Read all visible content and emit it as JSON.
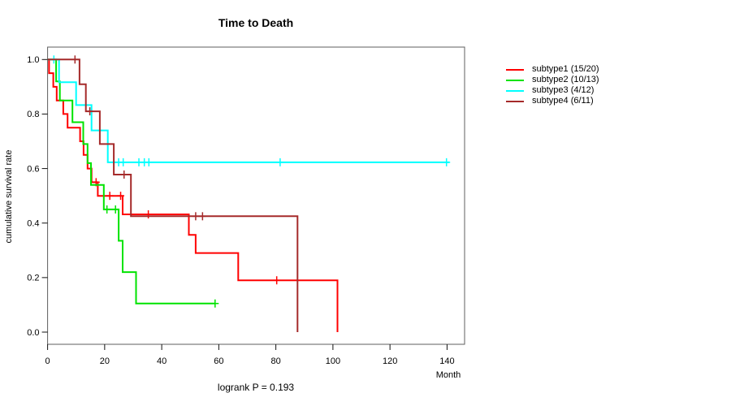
{
  "chart_data": {
    "type": "line",
    "variant": "kaplan-meier-step",
    "title": "Time to Death",
    "xlabel": "Month",
    "ylabel": "cumulative survival rate",
    "annotation": "logrank P = 0.193",
    "xlim": [
      0,
      146
    ],
    "ylim": [
      0,
      1
    ],
    "grid": false,
    "legend_position": "right-outside",
    "x_tick_values": [
      0,
      20,
      40,
      60,
      80,
      100,
      120,
      140
    ],
    "x_tick_labels": [
      "0",
      "20",
      "40",
      "60",
      "80",
      "100",
      "120",
      "140"
    ],
    "y_tick_values": [
      0.0,
      0.2,
      0.4,
      0.6,
      0.8,
      1.0
    ],
    "y_tick_labels": [
      "0.0",
      "0.2",
      "0.4",
      "0.6",
      "0.8",
      "1.0"
    ],
    "series": [
      {
        "name": "subtype1",
        "legend_label": "subtype1 (15/20)",
        "color": "#ff0000",
        "end": 101.6,
        "steps": [
          [
            0,
            1.0
          ],
          [
            0.5,
            0.95
          ],
          [
            2,
            0.9
          ],
          [
            3.2,
            0.85
          ],
          [
            5.5,
            0.8
          ],
          [
            7,
            0.75
          ],
          [
            11.4,
            0.7
          ],
          [
            12.6,
            0.65
          ],
          [
            14,
            0.6
          ],
          [
            15.4,
            0.55
          ],
          [
            17.6,
            0.5
          ],
          [
            26.3,
            0.432
          ],
          [
            49.5,
            0.357
          ],
          [
            51.9,
            0.29
          ],
          [
            66.8,
            0.19
          ],
          [
            101.6,
            0.0
          ]
        ],
        "censors": [
          [
            17.0,
            0.55
          ],
          [
            21.8,
            0.5
          ],
          [
            25.6,
            0.5
          ],
          [
            35.3,
            0.432
          ],
          [
            80.3,
            0.19
          ]
        ]
      },
      {
        "name": "subtype2",
        "legend_label": "subtype2 (10/13)",
        "color": "#00e300",
        "end": 58.7,
        "steps": [
          [
            0,
            1.0
          ],
          [
            3,
            0.92
          ],
          [
            4.3,
            0.85
          ],
          [
            8.7,
            0.77
          ],
          [
            12.5,
            0.69
          ],
          [
            14,
            0.62
          ],
          [
            15.2,
            0.54
          ],
          [
            19.7,
            0.45
          ],
          [
            24.9,
            0.335
          ],
          [
            26.3,
            0.22
          ],
          [
            31,
            0.105
          ]
        ],
        "censors": [
          [
            20.8,
            0.45
          ],
          [
            23.8,
            0.45
          ],
          [
            58.7,
            0.105
          ]
        ]
      },
      {
        "name": "subtype3",
        "legend_label": "subtype3 (4/12)",
        "color": "#00ffff",
        "end": 140.8,
        "steps": [
          [
            0,
            1.0
          ],
          [
            4,
            0.917
          ],
          [
            10,
            0.833
          ],
          [
            15.4,
            0.74
          ],
          [
            21.1,
            0.623
          ]
        ],
        "censors": [
          [
            2.2,
            1.0
          ],
          [
            24.9,
            0.623
          ],
          [
            26.5,
            0.623
          ],
          [
            32,
            0.623
          ],
          [
            33.9,
            0.623
          ],
          [
            35.5,
            0.623
          ],
          [
            81.5,
            0.623
          ],
          [
            139.8,
            0.623
          ]
        ]
      },
      {
        "name": "subtype4",
        "legend_label": "subtype4 (6/11)",
        "color": "#a52a2a",
        "end": 87.6,
        "steps": [
          [
            0,
            1.0
          ],
          [
            11.2,
            0.909
          ],
          [
            13.4,
            0.81
          ],
          [
            18.3,
            0.69
          ],
          [
            23.2,
            0.578
          ],
          [
            29.2,
            0.425
          ],
          [
            87.6,
            0.0
          ]
        ],
        "censors": [
          [
            9.6,
            1.0
          ],
          [
            14.8,
            0.81
          ],
          [
            26.8,
            0.578
          ],
          [
            51.9,
            0.425
          ],
          [
            54.3,
            0.425
          ]
        ]
      }
    ]
  }
}
